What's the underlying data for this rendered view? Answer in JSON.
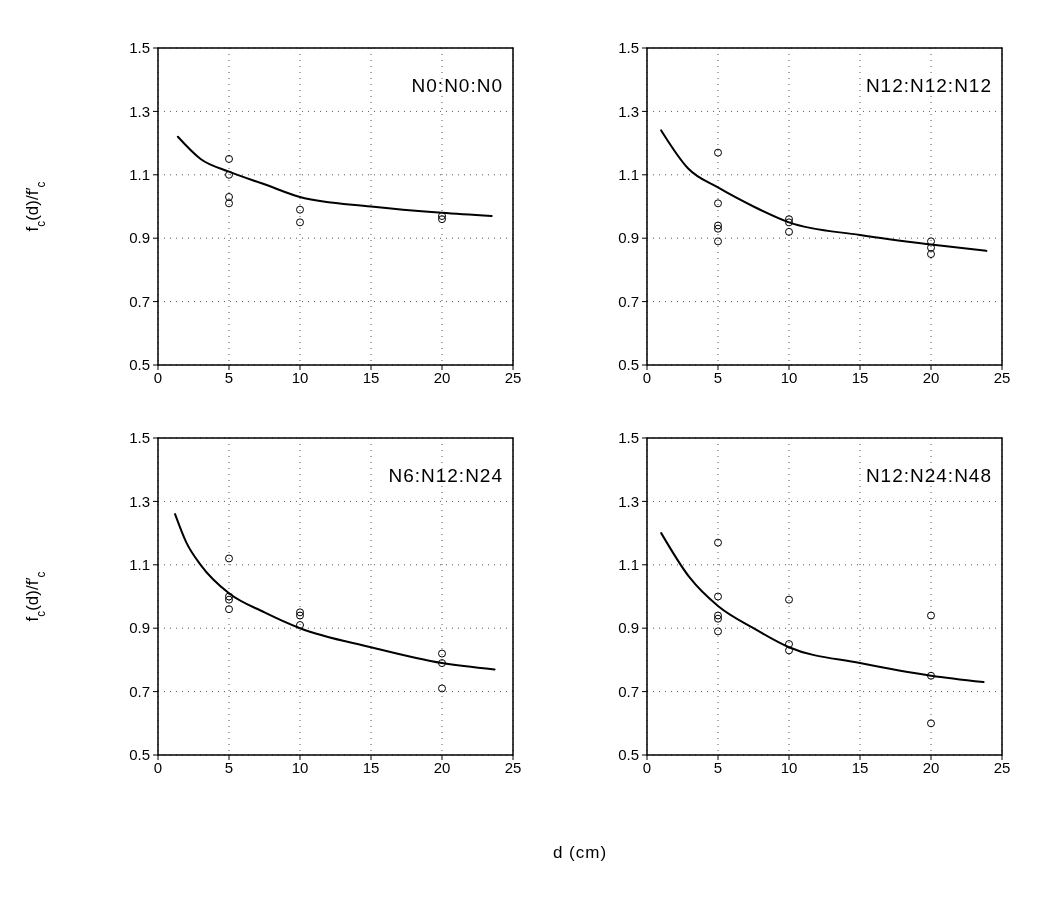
{
  "chart_data": [
    {
      "type": "scatter",
      "ylabel": "f$_{c}$(d)/f′$_{c}$",
      "annotations": [
        "N0:N0:N0"
      ],
      "xlim": [
        0,
        25
      ],
      "xticks": [
        0,
        5,
        10,
        15,
        20,
        25
      ],
      "ylim": [
        0.5,
        1.5
      ],
      "yticks": [
        0.5,
        0.7,
        0.9,
        1.1,
        1.3,
        1.5
      ],
      "grid": true,
      "marker": "circle",
      "series": [
        {
          "color": "#000000",
          "x": [
            5,
            5,
            5,
            5,
            10,
            10,
            20,
            20
          ],
          "values": [
            1.15,
            1.1,
            1.03,
            1.01,
            0.99,
            0.95,
            0.97,
            0.96
          ]
        },
        {
          "type": "line",
          "color": "#000000",
          "marker": "none",
          "line_style": "solid",
          "x": [
            1.4,
            3,
            5,
            7.5,
            10,
            15,
            20,
            23.5
          ],
          "values": [
            1.22,
            1.15,
            1.11,
            1.07,
            1.03,
            1.0,
            0.98,
            0.97
          ]
        }
      ]
    },
    {
      "type": "scatter",
      "annotations": [
        "N12:N12:N12"
      ],
      "xlim": [
        0,
        25
      ],
      "xticks": [
        0,
        5,
        10,
        15,
        20,
        25
      ],
      "ylim": [
        0.5,
        1.5
      ],
      "yticks": [
        0.5,
        0.7,
        0.9,
        1.1,
        1.3,
        1.5
      ],
      "grid": true,
      "marker": "circle",
      "series": [
        {
          "color": "#000000",
          "x": [
            5,
            5,
            5,
            5,
            5,
            10,
            10,
            10,
            20,
            20,
            20
          ],
          "values": [
            1.17,
            1.01,
            0.94,
            0.93,
            0.89,
            0.96,
            0.95,
            0.92,
            0.89,
            0.87,
            0.85
          ]
        },
        {
          "type": "line",
          "color": "#000000",
          "marker": "none",
          "line_style": "solid",
          "x": [
            1,
            2.9,
            5,
            7.5,
            10,
            15,
            20,
            23.9
          ],
          "values": [
            1.24,
            1.12,
            1.06,
            1.0,
            0.95,
            0.91,
            0.88,
            0.86
          ]
        }
      ]
    },
    {
      "type": "scatter",
      "ylabel": "f$_{c}$(d)/f′$_{c}$",
      "xlabel": "d (cm)",
      "annotations": [
        "N6:N12:N24"
      ],
      "xlim": [
        0,
        25
      ],
      "xticks": [
        0,
        5,
        10,
        15,
        20,
        25
      ],
      "ylim": [
        0.5,
        1.5
      ],
      "yticks": [
        0.5,
        0.7,
        0.9,
        1.1,
        1.3,
        1.5
      ],
      "grid": true,
      "marker": "circle",
      "series": [
        {
          "color": "#000000",
          "x": [
            5,
            5,
            5,
            5,
            10,
            10,
            10,
            20,
            20,
            20
          ],
          "values": [
            1.12,
            1.0,
            0.99,
            0.96,
            0.95,
            0.94,
            0.91,
            0.82,
            0.79,
            0.71
          ]
        },
        {
          "type": "line",
          "color": "#000000",
          "marker": "none",
          "line_style": "solid",
          "x": [
            1.2,
            2,
            3,
            5,
            7.5,
            10,
            15,
            20,
            23.7
          ],
          "values": [
            1.26,
            1.17,
            1.1,
            1.01,
            0.95,
            0.9,
            0.84,
            0.79,
            0.77
          ]
        }
      ]
    },
    {
      "type": "scatter",
      "annotations": [
        "N12:N24:N48"
      ],
      "xlim": [
        0,
        25
      ],
      "xticks": [
        0,
        5,
        10,
        15,
        20,
        25
      ],
      "ylim": [
        0.5,
        1.5
      ],
      "yticks": [
        0.5,
        0.7,
        0.9,
        1.1,
        1.3,
        1.5
      ],
      "grid": true,
      "marker": "circle",
      "series": [
        {
          "color": "#000000",
          "x": [
            5,
            5,
            5,
            5,
            5,
            10,
            10,
            10,
            20,
            20,
            20
          ],
          "values": [
            1.17,
            1.0,
            0.94,
            0.93,
            0.89,
            0.99,
            0.85,
            0.83,
            0.94,
            0.75,
            0.6
          ]
        },
        {
          "type": "line",
          "color": "#000000",
          "marker": "none",
          "line_style": "solid",
          "x": [
            1,
            3,
            5,
            7.5,
            10,
            15,
            20,
            23.7
          ],
          "values": [
            1.2,
            1.06,
            0.97,
            0.9,
            0.84,
            0.79,
            0.75,
            0.73
          ]
        }
      ]
    }
  ]
}
